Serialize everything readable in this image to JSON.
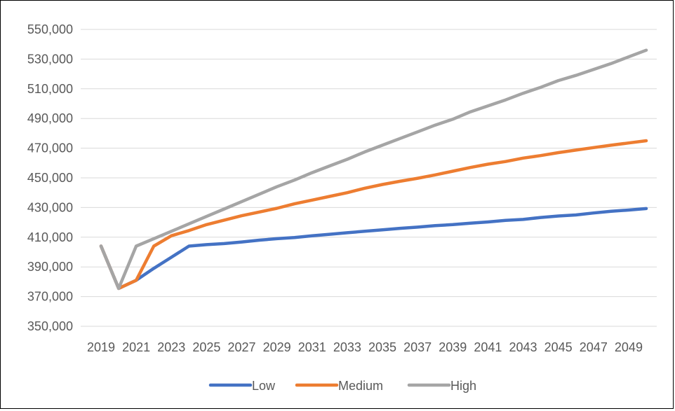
{
  "chart_data": {
    "type": "line",
    "title": "",
    "xlabel": "",
    "ylabel": "",
    "x": [
      2019,
      2020,
      2021,
      2022,
      2023,
      2024,
      2025,
      2026,
      2027,
      2028,
      2029,
      2030,
      2031,
      2032,
      2033,
      2034,
      2035,
      2036,
      2037,
      2038,
      2039,
      2040,
      2041,
      2042,
      2043,
      2044,
      2045,
      2046,
      2047,
      2048,
      2049,
      2050
    ],
    "x_tick_labels": [
      "2019",
      "2021",
      "2023",
      "2025",
      "2027",
      "2029",
      "2031",
      "2033",
      "2035",
      "2037",
      "2039",
      "2041",
      "2043",
      "2045",
      "2047",
      "2049"
    ],
    "ylim": [
      350000,
      550000
    ],
    "y_tick_labels": [
      "350,000",
      "370,000",
      "390,000",
      "410,000",
      "430,000",
      "450,000",
      "470,000",
      "490,000",
      "510,000",
      "530,000",
      "550,000"
    ],
    "grid": true,
    "legend_position": "bottom",
    "series": [
      {
        "name": "Low",
        "color": "#4472C4",
        "values": [
          404000,
          375500,
          381000,
          389000,
          396500,
          404000,
          405000,
          405700,
          406800,
          408000,
          409000,
          409800,
          411000,
          412000,
          413000,
          414000,
          415000,
          416000,
          416800,
          417800,
          418500,
          419500,
          420300,
          421300,
          422000,
          423300,
          424300,
          425000,
          426300,
          427500,
          428300,
          429300
        ]
      },
      {
        "name": "Medium",
        "color": "#ED7D31",
        "values": [
          404000,
          375500,
          381000,
          404000,
          411000,
          414500,
          418500,
          421500,
          424500,
          427000,
          429500,
          432500,
          435000,
          437500,
          440000,
          443000,
          445500,
          447700,
          449700,
          452000,
          454500,
          457000,
          459200,
          461000,
          463300,
          465000,
          467000,
          468700,
          470400,
          472000,
          473500,
          475000
        ]
      },
      {
        "name": "High",
        "color": "#A5A5A5",
        "values": [
          404000,
          375500,
          404000,
          409000,
          414000,
          419000,
          424000,
          429000,
          434000,
          439000,
          444000,
          448500,
          453500,
          458000,
          462500,
          467500,
          472000,
          476500,
          481000,
          485500,
          489500,
          494500,
          498500,
          502500,
          507000,
          511000,
          515500,
          519000,
          523000,
          527000,
          531500,
          536000
        ]
      }
    ]
  }
}
